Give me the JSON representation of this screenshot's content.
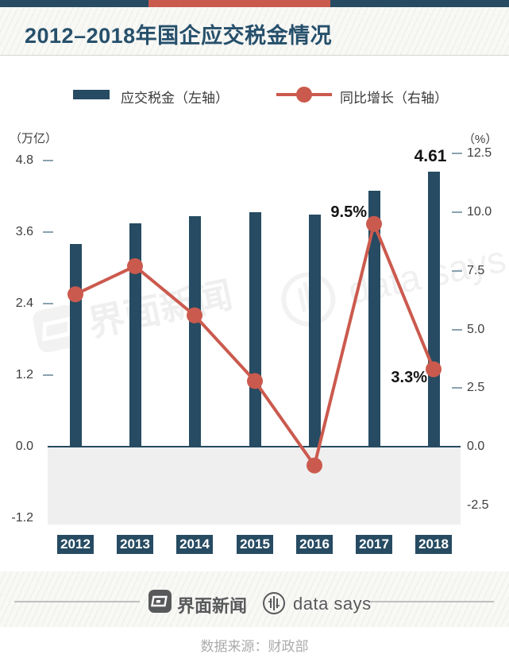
{
  "header": {
    "title": "2012–2018年国企应交税金情况"
  },
  "chart_data": {
    "type": "bar+line",
    "title": "2012–2018年国企应交税金情况",
    "categories": [
      "2012",
      "2013",
      "2014",
      "2015",
      "2016",
      "2017",
      "2018"
    ],
    "series": [
      {
        "name": "应交税金（左轴）",
        "type": "bar",
        "axis": "left",
        "unit": "万亿",
        "values": [
          3.4,
          3.75,
          3.87,
          3.93,
          3.89,
          4.3,
          4.61
        ]
      },
      {
        "name": "同比增长（右轴）",
        "type": "line",
        "axis": "right",
        "unit": "%",
        "values": [
          6.5,
          7.7,
          5.6,
          2.8,
          -0.8,
          9.5,
          3.3
        ]
      }
    ],
    "left_axis": {
      "label": "（万亿）",
      "ticks": [
        "4.8",
        "3.6",
        "2.4",
        "1.2",
        "0.0",
        "-1.2"
      ],
      "range": [
        -1.2,
        4.8
      ]
    },
    "right_axis": {
      "label": "（%）",
      "ticks": [
        "12.5",
        "10.0",
        "7.5",
        "5.0",
        "2.5",
        "0.0",
        "-2.5"
      ],
      "range": [
        -2.5,
        12.5
      ]
    },
    "grid": false,
    "legend_position": "top",
    "point_labels": [
      {
        "category": "2017",
        "series": "同比增长（右轴）",
        "text": "9.5%"
      },
      {
        "category": "2018",
        "series": "应交税金（左轴）",
        "text": "4.61"
      },
      {
        "category": "2018",
        "series": "同比增长（右轴）",
        "text": "3.3%"
      }
    ]
  },
  "watermarks": {
    "left": "界面新闻",
    "right": "data says"
  },
  "footer": {
    "brand_left": "界面新闻",
    "brand_right": "data says",
    "source": "数据来源：财政部"
  },
  "colors": {
    "primary_blue": "#264b62",
    "accent_red": "#cb5a4e",
    "title_blue": "#26506b",
    "negative_band": "#efefef",
    "tick_dash": "#8aa2b0",
    "tick_text": "#3d3d3d",
    "label_black": "#141414",
    "footer_gray": "#58595b",
    "source_gray": "#ababab"
  }
}
